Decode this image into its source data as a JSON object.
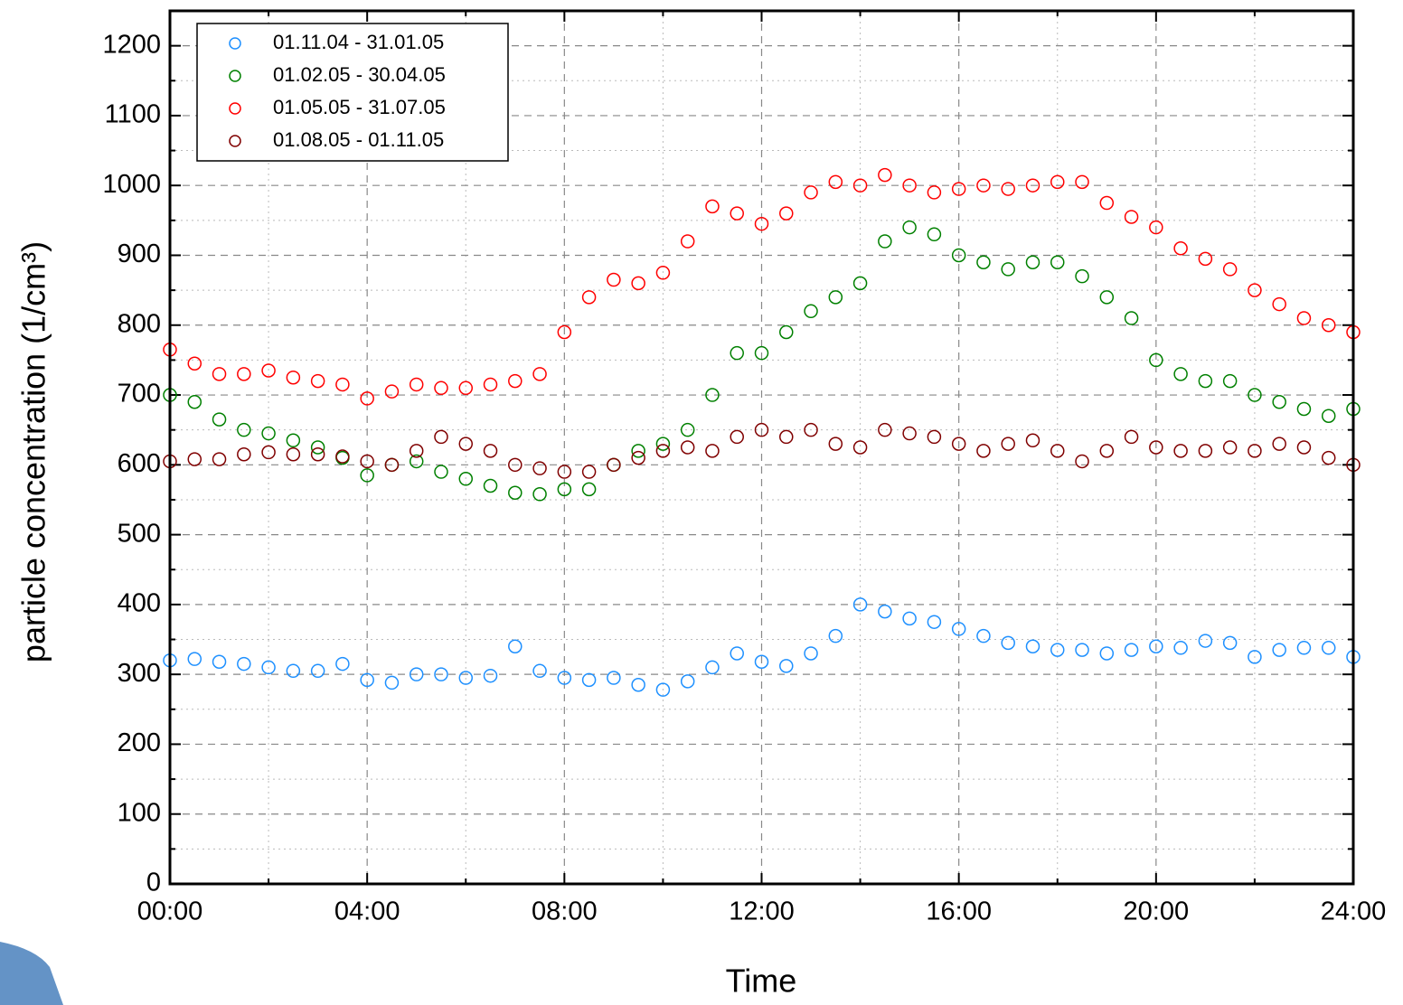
{
  "chart_data": {
    "type": "scatter",
    "x_label": "Time",
    "y_label": "particle concentration (1/cm³)",
    "x": [
      0,
      0.5,
      1,
      1.5,
      2,
      2.5,
      3,
      3.5,
      4,
      4.5,
      5,
      5.5,
      6,
      6.5,
      7,
      7.5,
      8,
      8.5,
      9,
      9.5,
      10,
      10.5,
      11,
      11.5,
      12,
      12.5,
      13,
      13.5,
      14,
      14.5,
      15,
      15.5,
      16,
      16.5,
      17,
      17.5,
      18,
      18.5,
      19,
      19.5,
      20,
      20.5,
      21,
      21.5,
      22,
      22.5,
      23,
      23.5,
      24
    ],
    "series": [
      {
        "name": "01.11.04 - 31.01.05",
        "color": "#1e90ff",
        "values": [
          320,
          322,
          318,
          315,
          310,
          305,
          305,
          315,
          292,
          288,
          300,
          300,
          295,
          298,
          340,
          305,
          295,
          292,
          295,
          285,
          278,
          290,
          310,
          330,
          318,
          312,
          330,
          355,
          400,
          390,
          380,
          375,
          365,
          355,
          345,
          340,
          335,
          335,
          330,
          335,
          340,
          338,
          348,
          345,
          325,
          335,
          338,
          338,
          325
        ]
      },
      {
        "name": "01.02.05 - 30.04.05",
        "color": "#008000",
        "values": [
          700,
          690,
          665,
          650,
          645,
          635,
          625,
          610,
          585,
          600,
          605,
          590,
          580,
          570,
          560,
          558,
          565,
          565,
          600,
          620,
          630,
          650,
          700,
          760,
          760,
          790,
          820,
          840,
          860,
          920,
          940,
          930,
          900,
          890,
          880,
          890,
          890,
          870,
          840,
          810,
          750,
          730,
          720,
          720,
          700,
          690,
          680,
          670,
          680
        ]
      },
      {
        "name": "01.05.05 - 31.07.05",
        "color": "#ff0000",
        "values": [
          765,
          745,
          730,
          730,
          735,
          725,
          720,
          715,
          695,
          705,
          715,
          710,
          710,
          715,
          720,
          730,
          790,
          840,
          865,
          860,
          875,
          920,
          970,
          960,
          945,
          960,
          990,
          1005,
          1000,
          1015,
          1000,
          990,
          995,
          1000,
          995,
          1000,
          1005,
          1005,
          975,
          955,
          940,
          910,
          895,
          880,
          850,
          830,
          810,
          800,
          790
        ]
      },
      {
        "name": "01.08.05 - 01.11.05",
        "color": "#800000",
        "values": [
          605,
          608,
          608,
          615,
          618,
          615,
          615,
          612,
          605,
          600,
          620,
          640,
          630,
          620,
          600,
          595,
          590,
          590,
          600,
          610,
          620,
          625,
          620,
          640,
          650,
          640,
          650,
          630,
          625,
          650,
          645,
          640,
          630,
          620,
          630,
          635,
          620,
          605,
          620,
          640,
          625,
          620,
          620,
          625,
          620,
          630,
          625,
          610,
          600
        ]
      }
    ],
    "xlim": [
      0,
      24
    ],
    "xticks": [
      {
        "value": 0,
        "label": "00:00"
      },
      {
        "value": 4,
        "label": "04:00"
      },
      {
        "value": 8,
        "label": "08:00"
      },
      {
        "value": 12,
        "label": "12:00"
      },
      {
        "value": 16,
        "label": "16:00"
      },
      {
        "value": 20,
        "label": "20:00"
      },
      {
        "value": 24,
        "label": "24:00"
      }
    ],
    "ylim": [
      0,
      1250
    ],
    "yticks": [
      0,
      100,
      200,
      300,
      400,
      500,
      600,
      700,
      800,
      900,
      1000,
      1100,
      1200
    ],
    "grid": true,
    "legend": "top-left"
  }
}
